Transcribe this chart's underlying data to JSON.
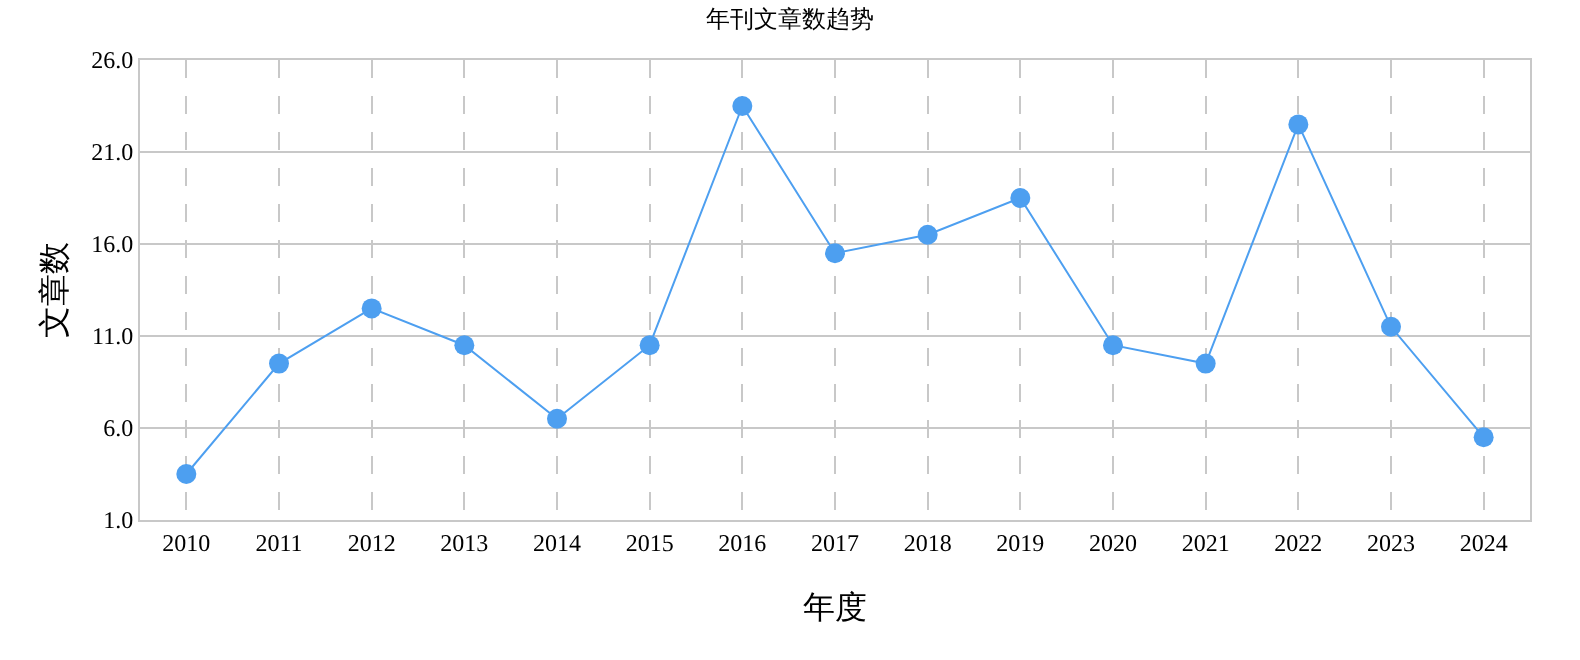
{
  "chart_data": {
    "type": "line",
    "title": "年刊文章数趋势",
    "xlabel": "年度",
    "ylabel": "文章数",
    "categories": [
      "2010",
      "2011",
      "2012",
      "2013",
      "2014",
      "2015",
      "2016",
      "2017",
      "2018",
      "2019",
      "2020",
      "2021",
      "2022",
      "2023",
      "2024"
    ],
    "series": [
      {
        "color": "#4d9ff0",
        "values": [
          3.5,
          9.5,
          12.5,
          10.5,
          6.5,
          10.5,
          23.5,
          15.5,
          16.5,
          18.5,
          10.5,
          9.5,
          22.5,
          11.5,
          5.5
        ]
      }
    ],
    "ylim": [
      1,
      26
    ],
    "yticks": [
      {
        "value": 1,
        "label": "1.0"
      },
      {
        "value": 6,
        "label": "6.0"
      },
      {
        "value": 11,
        "label": "11.0"
      },
      {
        "value": 16,
        "label": "16.0"
      },
      {
        "value": 21,
        "label": "21.0"
      },
      {
        "value": 26,
        "label": "26.0"
      }
    ],
    "grid": true,
    "marker": "circle",
    "line_style": "solid",
    "legend": false
  }
}
